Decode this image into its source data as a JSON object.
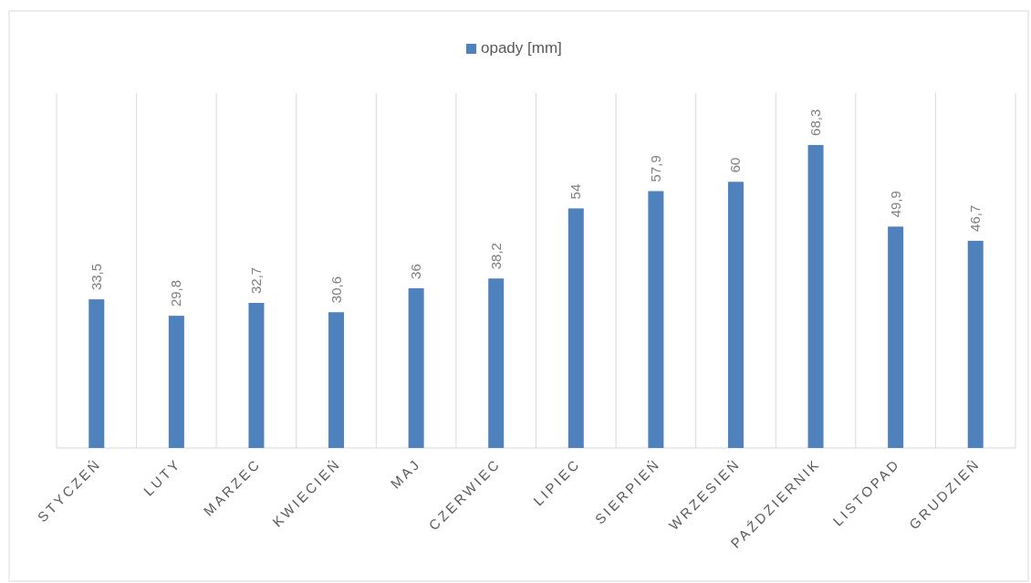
{
  "chart_data": {
    "type": "bar",
    "categories": [
      "STYCZEŃ",
      "LUTY",
      "MARZEC",
      "KWIECIEŃ",
      "MAJ",
      "CZERWIEC",
      "LIPIEC",
      "SIERPIEŃ",
      "WRZESIEŃ",
      "PAŹDZIERNIK",
      "LISTOPAD",
      "GRUDZIEŃ"
    ],
    "series": [
      {
        "name": "opady [mm]",
        "color": "#4f81bd",
        "values": [
          33.5,
          29.8,
          32.7,
          30.6,
          36,
          38.2,
          54,
          57.9,
          60,
          68.3,
          49.9,
          46.7
        ],
        "value_labels": [
          "33,5",
          "29,8",
          "32,7",
          "30,6",
          "36",
          "38,2",
          "54",
          "57,9",
          "60",
          "68,3",
          "49,9",
          "46,7"
        ]
      }
    ],
    "ylim": [
      0,
      80
    ],
    "tick_labels": "x",
    "grid": "x",
    "legend": "top"
  }
}
